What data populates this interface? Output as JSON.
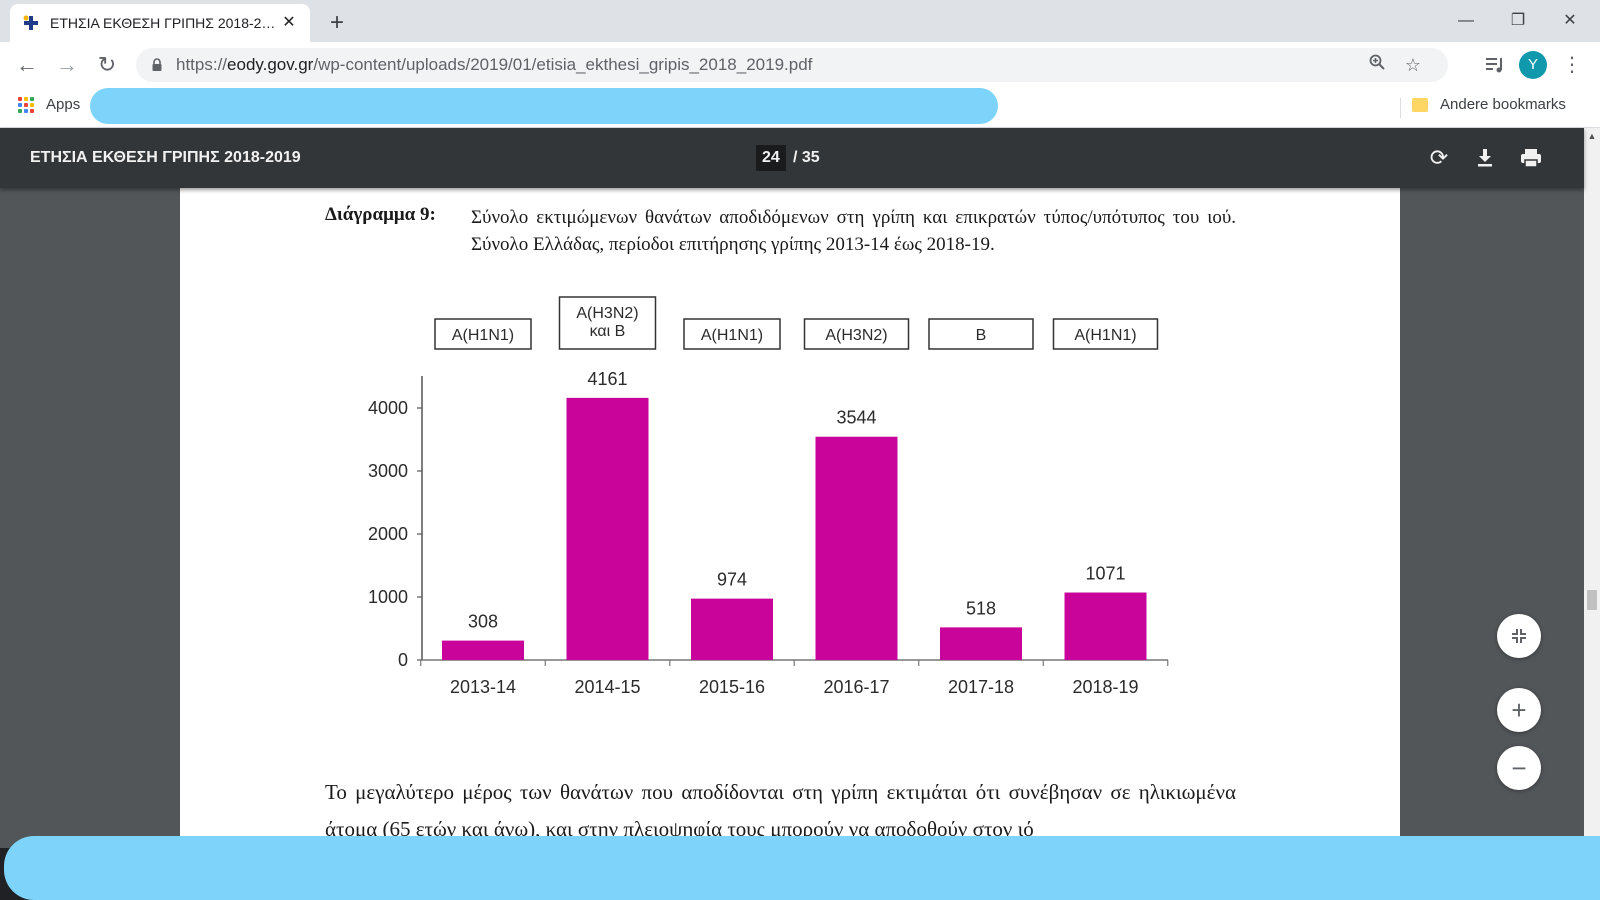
{
  "browser": {
    "tab": {
      "title": "ΕΤΗΣΙΑ ΕΚΘΕΣΗ ΓΡΙΠΗΣ 2018-2019",
      "close": "✕"
    },
    "new_tab": "+",
    "window": {
      "minimize": "—",
      "restore": "❐",
      "close": "✕"
    },
    "nav": {
      "back": "←",
      "forward": "→",
      "reload": "↻"
    },
    "url": {
      "scheme": "https://",
      "host": "eody.gov.gr",
      "path": "/wp-content/uploads/2019/01/etisia_ekthesi_gripis_2018_2019.pdf"
    },
    "avatar_letter": "Y",
    "bookmarks": {
      "apps_label": "Apps",
      "other_label": "Andere bookmarks"
    }
  },
  "pdf": {
    "title": "ΕΤΗΣΙΑ ΕΚΘΕΣΗ ΓΡΙΠΗΣ 2018-2019",
    "page": "24",
    "total": "/ 35"
  },
  "document": {
    "caption_label": "Διάγραμμα 9:",
    "caption_text": "Σύνολο εκτιμώμενων θανάτων αποδιδόμενων στη γρίπη και επικρατών τύπος/υπότυπος του ιού. Σύνολο Ελλάδας, περίοδοι επιτήρησης γρίπης 2013-14 έως 2018-19.",
    "body_text": "Το μεγαλύτερο μέρος των θανάτων που αποδίδονται στη γρίπη εκτιμάται ότι συνέβησαν σε ηλικιωμένα άτομα (65 ετών και άνω), και στην πλειοψηφία τους μπορούν να αποδοθούν στον ιό"
  },
  "chart_data": {
    "type": "bar",
    "categories": [
      "2013-14",
      "2014-15",
      "2015-16",
      "2016-17",
      "2017-18",
      "2018-19"
    ],
    "values": [
      308,
      4161,
      974,
      3544,
      518,
      1071
    ],
    "data_labels": [
      "308",
      "4161",
      "974",
      "3544",
      "518",
      "1071"
    ],
    "annotations": [
      [
        "A(H1N1)"
      ],
      [
        "A(H3N2)",
        "και B"
      ],
      [
        "A(H1N1)"
      ],
      [
        "A(H3N2)"
      ],
      [
        "B"
      ],
      [
        "A(H1N1)"
      ]
    ],
    "yticks": [
      0,
      1000,
      2000,
      3000,
      4000
    ],
    "ylim": [
      0,
      4500
    ],
    "bar_color": "#c8049b",
    "grid": false,
    "title": "",
    "xlabel": "",
    "ylabel": ""
  }
}
